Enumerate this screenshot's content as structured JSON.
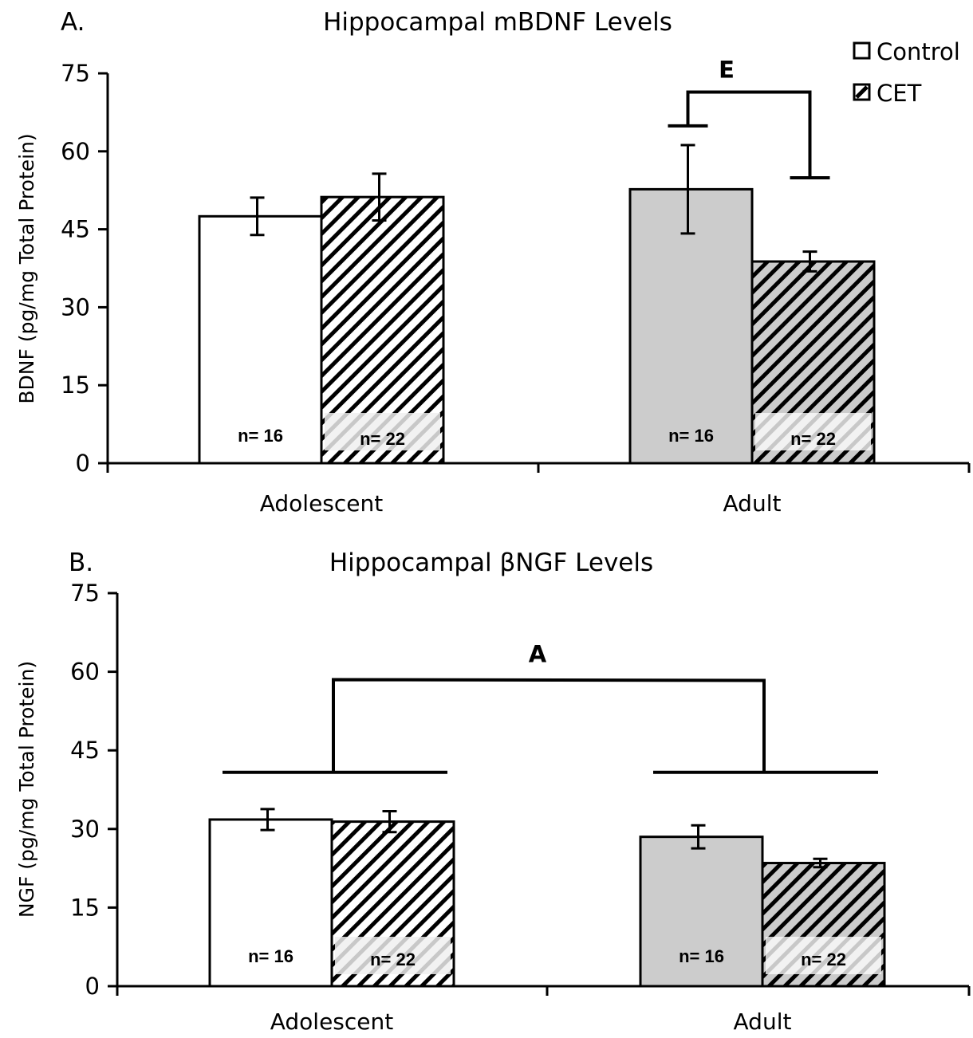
{
  "chart_data": [
    {
      "type": "bar",
      "panel_label": "A.",
      "title": "Hippocampal mBDNF Levels",
      "xlabel": "",
      "ylabel": "BDNF (pg/mg Total Protein)",
      "ylim": [
        0,
        75
      ],
      "yticks": [
        "0",
        "15",
        "30",
        "45",
        "60",
        "75"
      ],
      "categories": [
        "Adolescent",
        "Adult"
      ],
      "series": [
        {
          "name": "Control",
          "values": [
            47.5,
            52.7
          ],
          "errors": [
            3.6,
            8.5
          ],
          "n_labels": [
            "n= 16",
            "n= 16"
          ]
        },
        {
          "name": "CET",
          "values": [
            51.2,
            38.8
          ],
          "errors": [
            4.5,
            1.9
          ],
          "n_labels": [
            "n= 22",
            "n= 22"
          ]
        }
      ],
      "significance": [
        {
          "label": "E",
          "type": "within-adult",
          "left_y": 64.9,
          "right_y": 54.9,
          "top_y": 71.4
        }
      ],
      "legend": {
        "position": "top-right",
        "items": [
          "Control",
          "CET"
        ]
      },
      "grid": false
    },
    {
      "type": "bar",
      "panel_label": "B.",
      "title": "Hippocampal βNGF Levels",
      "xlabel": "",
      "ylabel": "NGF (pg/mg Total Protein)",
      "ylim": [
        0,
        75
      ],
      "yticks": [
        "0",
        "15",
        "30",
        "45",
        "60",
        "75"
      ],
      "categories": [
        "Adolescent",
        "Adult"
      ],
      "series": [
        {
          "name": "Control",
          "values": [
            31.8,
            28.5
          ],
          "errors": [
            2.0,
            2.2
          ],
          "n_labels": [
            "n= 16",
            "n= 16"
          ]
        },
        {
          "name": "CET",
          "values": [
            31.4,
            23.5
          ],
          "errors": [
            2.0,
            0.8
          ],
          "n_labels": [
            "n= 22",
            "n= 22"
          ]
        }
      ],
      "significance": [
        {
          "label": "A",
          "type": "between-ages",
          "group_y": 40.8,
          "top_y": 58.5
        }
      ],
      "grid": false
    }
  ],
  "colors": {
    "control_adolescent": "#ffffff",
    "control_adult": "#cccccc",
    "cet_adolescent_bg": "#ffffff",
    "cet_adult_bg": "#cccccc",
    "hatch": "#000000",
    "axis": "#000000"
  }
}
